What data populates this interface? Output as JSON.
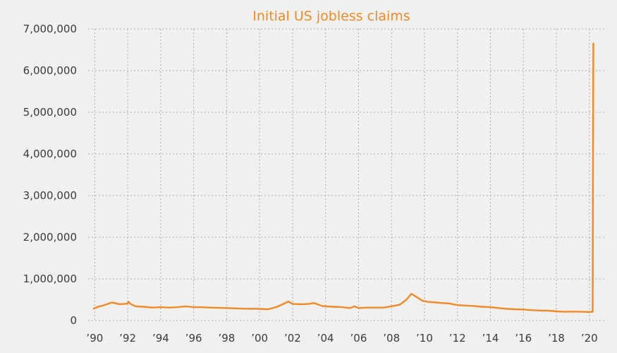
{
  "chart_data": {
    "type": "line",
    "title": "Initial US jobless claims",
    "xlabel": "",
    "ylabel": "",
    "xlim": [
      1989.6,
      2020.95
    ],
    "ylim": [
      0,
      7000000
    ],
    "grid": true,
    "legend": "none",
    "colors": {
      "line": "#f08a24",
      "title": "#f08a24",
      "background": "#f0f0f0",
      "grid": "#a8a8a8",
      "text": "#3a3a3a"
    },
    "y_ticks": [
      {
        "value": 0,
        "label": "0"
      },
      {
        "value": 1000000,
        "label": "1,000,000"
      },
      {
        "value": 2000000,
        "label": "2,000,000"
      },
      {
        "value": 3000000,
        "label": "3,000,000"
      },
      {
        "value": 4000000,
        "label": "4,000,000"
      },
      {
        "value": 5000000,
        "label": "5,000,000"
      },
      {
        "value": 6000000,
        "label": "6,000,000"
      },
      {
        "value": 7000000,
        "label": "7,000,000"
      }
    ],
    "x_ticks": [
      {
        "value": 1990,
        "label": "’90"
      },
      {
        "value": 1992,
        "label": "’92"
      },
      {
        "value": 1994,
        "label": "’94"
      },
      {
        "value": 1996,
        "label": "’96"
      },
      {
        "value": 1998,
        "label": "’98"
      },
      {
        "value": 2000,
        "label": "’00"
      },
      {
        "value": 2002,
        "label": "’02"
      },
      {
        "value": 2004,
        "label": "’04"
      },
      {
        "value": 2006,
        "label": "’06"
      },
      {
        "value": 2008,
        "label": "’08"
      },
      {
        "value": 2010,
        "label": "’10"
      },
      {
        "value": 2012,
        "label": "’12"
      },
      {
        "value": 2014,
        "label": "’14"
      },
      {
        "value": 2016,
        "label": "’16"
      },
      {
        "value": 2018,
        "label": "’18"
      },
      {
        "value": 2020,
        "label": "’20"
      }
    ],
    "series": [
      {
        "x": [
          1989.9,
          1990.2,
          1990.5,
          1990.8,
          1991.0,
          1991.2,
          1991.5,
          1991.8,
          1992.0,
          1992.05,
          1992.2,
          1992.5,
          1993.0,
          1993.5,
          1994.0,
          1994.5,
          1995.0,
          1995.5,
          1996.0,
          1996.5,
          1997.0,
          1998.0,
          1999.0,
          2000.0,
          2000.5,
          2001.0,
          2001.4,
          2001.75,
          2001.85,
          2002.0,
          2002.5,
          2003.0,
          2003.3,
          2003.8,
          2004.0,
          2004.5,
          2005.0,
          2005.5,
          2005.75,
          2006.0,
          2006.5,
          2007.0,
          2007.5,
          2008.0,
          2008.5,
          2008.9,
          2009.2,
          2009.5,
          2009.9,
          2010.2,
          2010.5,
          2011.0,
          2011.5,
          2012.0,
          2012.5,
          2013.0,
          2013.5,
          2014.0,
          2014.5,
          2015.0,
          2015.5,
          2016.0,
          2016.5,
          2017.0,
          2017.5,
          2018.0,
          2018.5,
          2019.0,
          2019.5,
          2020.0,
          2020.15,
          2020.2,
          2020.22,
          2020.24,
          2020.26
        ],
        "values": [
          280000,
          330000,
          360000,
          400000,
          430000,
          420000,
          390000,
          400000,
          410000,
          450000,
          390000,
          340000,
          330000,
          310000,
          320000,
          310000,
          320000,
          340000,
          320000,
          320000,
          310000,
          300000,
          285000,
          280000,
          270000,
          320000,
          390000,
          460000,
          430000,
          400000,
          390000,
          400000,
          420000,
          350000,
          340000,
          330000,
          320000,
          300000,
          340000,
          300000,
          310000,
          310000,
          310000,
          340000,
          380000,
          500000,
          640000,
          570000,
          470000,
          450000,
          440000,
          420000,
          410000,
          370000,
          360000,
          350000,
          330000,
          320000,
          300000,
          280000,
          270000,
          265000,
          250000,
          240000,
          235000,
          220000,
          210000,
          215000,
          210000,
          205000,
          210000,
          211000,
          3300000,
          6650000,
          6600000
        ]
      }
    ]
  }
}
